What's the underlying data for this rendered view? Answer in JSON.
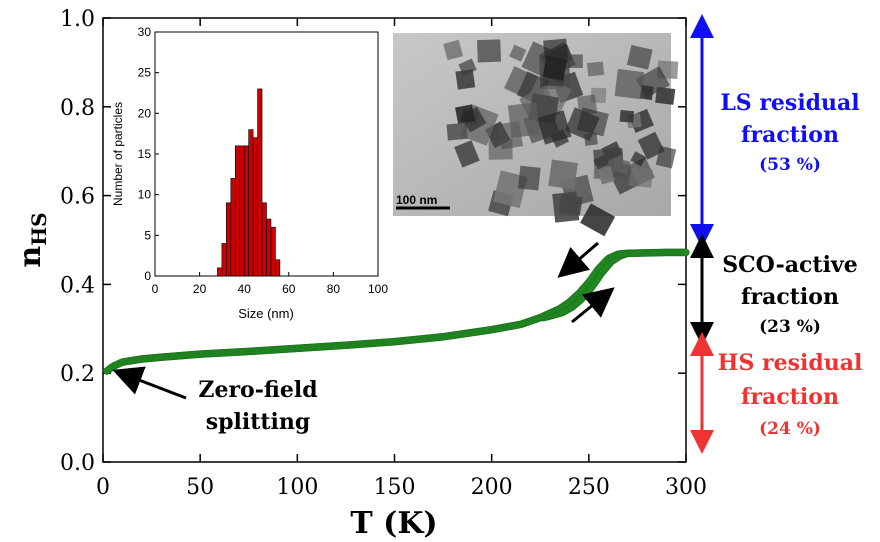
{
  "chart_data": [
    {
      "type": "scatter",
      "title": "",
      "xlabel": "T (K)",
      "ylabel": "n",
      "ylabel_sub": "HS",
      "xlim": [
        0,
        300
      ],
      "ylim": [
        0,
        1.0
      ],
      "xticks": [
        0,
        50,
        100,
        150,
        200,
        250,
        300
      ],
      "yticks": [
        0.0,
        0.2,
        0.4,
        0.6,
        0.8,
        1.0
      ],
      "xtick_labels": [
        "0",
        "50",
        "100",
        "150",
        "200",
        "250",
        "300"
      ],
      "ytick_labels": [
        "0.0",
        "0.2",
        "0.4",
        "0.6",
        "0.8",
        "1.0"
      ],
      "grid": false,
      "marker_color": "#228b22",
      "series": [
        {
          "values_x": [
            2,
            5,
            10,
            20,
            30,
            50,
            75,
            100,
            125,
            150,
            175,
            200,
            215,
            225,
            235,
            240,
            245,
            250,
            255,
            260,
            265,
            270,
            280,
            290,
            300
          ],
          "values_y": [
            0.205,
            0.215,
            0.225,
            0.232,
            0.236,
            0.243,
            0.249,
            0.256,
            0.263,
            0.271,
            0.282,
            0.298,
            0.31,
            0.325,
            0.345,
            0.36,
            0.38,
            0.405,
            0.435,
            0.458,
            0.468,
            0.47,
            0.471,
            0.472,
            0.472
          ]
        }
      ],
      "annotations": {
        "zfs_line1": "Zero-field",
        "zfs_line2": "splitting"
      }
    },
    {
      "type": "bar",
      "xlabel": "Size (nm)",
      "ylabel": "Number of particles",
      "xlim": [
        0,
        100
      ],
      "ylim": [
        0,
        30
      ],
      "xtick_labels": [
        "0",
        "20",
        "40",
        "60",
        "80",
        "100"
      ],
      "ytick_labels": [
        "0",
        "5",
        "10",
        "15",
        "20",
        "25",
        "30"
      ],
      "bar_color": "#cc0000",
      "bin_width": 2,
      "categories": [
        28,
        30,
        32,
        34,
        36,
        38,
        40,
        42,
        44,
        46,
        48,
        50,
        52,
        54
      ],
      "values": [
        1,
        4,
        9,
        12,
        16,
        16,
        16,
        18,
        17,
        23,
        9,
        7,
        6,
        2
      ]
    }
  ],
  "micrograph": {
    "scale_label": "100 nm"
  },
  "side_labels": {
    "ls_line1": "LS residual",
    "ls_line2": "fraction",
    "ls_pct": "(53 %)",
    "sco_line1": "SCO-active",
    "sco_line2": "fraction",
    "sco_pct": "(23 %)",
    "hs_line1": "HS residual",
    "hs_line2": "fraction",
    "hs_pct": "(24 %)"
  },
  "colors": {
    "ls": "#1010ee",
    "sco": "#000000",
    "hs": "#ee3333"
  }
}
